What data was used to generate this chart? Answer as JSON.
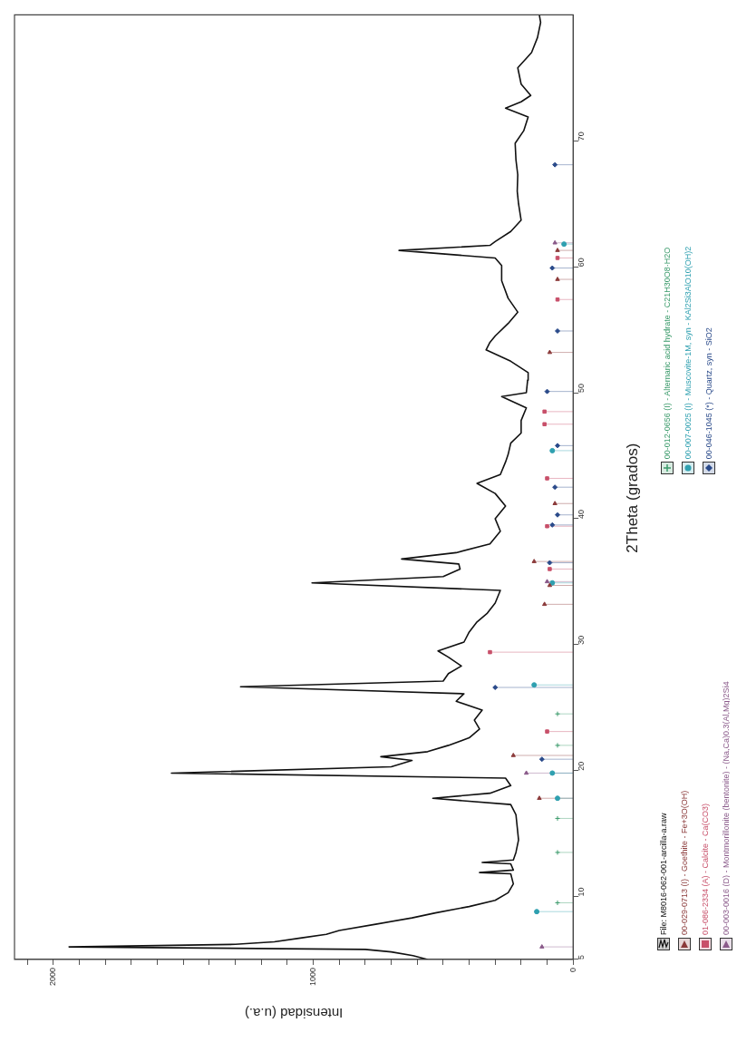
{
  "chart_data": {
    "type": "line",
    "orientation": "horizontal",
    "ylabel": "2Theta (grados)",
    "xlabel": "Intensidad (u.a.)",
    "ylim": [
      5,
      80
    ],
    "yticks": [
      5,
      10,
      20,
      30,
      40,
      50,
      60,
      70
    ],
    "xlim": [
      2150,
      0
    ],
    "xticks": [
      0,
      {
        "value": 100,
        "label": null
      },
      {
        "value": 200,
        "label": null
      },
      {
        "value": 300,
        "label": null
      },
      {
        "value": 400,
        "label": null
      },
      {
        "value": 500,
        "label": null
      },
      {
        "value": 600,
        "label": null
      },
      {
        "value": 700,
        "label": null
      },
      {
        "value": 800,
        "label": null
      },
      {
        "value": 900,
        "label": null
      },
      1000,
      {
        "value": 1100,
        "label": null
      },
      {
        "value": 1200,
        "label": null
      },
      {
        "value": 1300,
        "label": null
      },
      {
        "value": 1400,
        "label": null
      },
      {
        "value": 1500,
        "label": null
      },
      {
        "value": 1600,
        "label": null
      },
      {
        "value": 1700,
        "label": null
      },
      {
        "value": 1800,
        "label": null
      },
      {
        "value": 1900,
        "label": null
      },
      2000,
      {
        "value": 2100,
        "label": null
      }
    ],
    "legend": "right",
    "series": [
      {
        "name": "File: M8016-062-001-arcilla-a.raw",
        "color": "#111111",
        "x": [
          5.0,
          5.3,
          5.6,
          5.8,
          6.0,
          6.2,
          6.4,
          6.7,
          7.0,
          7.3,
          7.8,
          8.3,
          8.7,
          9.2,
          9.7,
          10.3,
          11.0,
          11.8,
          11.9,
          12.1,
          12.6,
          12.7,
          12.9,
          13.5,
          14.5,
          15.5,
          16.5,
          17.3,
          17.8,
          18.2,
          18.8,
          19.4,
          19.8,
          20.3,
          20.8,
          21.1,
          21.5,
          22.0,
          22.6,
          23.3,
          24.0,
          24.8,
          25.5,
          26.1,
          26.65,
          27.1,
          27.7,
          28.3,
          29.0,
          29.5,
          30.2,
          31.0,
          31.8,
          32.5,
          33.3,
          34.3,
          34.9,
          35.4,
          36.0,
          36.4,
          36.8,
          37.3,
          38.0,
          39.0,
          40.0,
          41.0,
          42.0,
          42.8,
          43.5,
          44.5,
          45.1,
          46.0,
          46.8,
          47.8,
          48.8,
          49.7,
          50.0,
          51.0,
          51.6,
          52.5,
          53.4,
          54.0,
          54.5,
          55.5,
          56.4,
          57.5,
          58.9,
          60.1,
          60.7,
          61.3,
          61.7,
          62.0,
          62.8,
          63.7,
          65.0,
          66.0,
          67.3,
          68.5,
          69.8,
          70.8,
          71.9,
          72.6,
          73.1,
          73.6,
          74.5,
          75.8,
          77.0,
          78.2,
          79.4,
          80.0
        ],
        "values": [
          560,
          616,
          700,
          800,
          1940,
          1300,
          1150,
          1050,
          950,
          900,
          760,
          620,
          530,
          400,
          300,
          250,
          230,
          240,
          360,
          230,
          240,
          350,
          230,
          220,
          210,
          215,
          220,
          240,
          540,
          320,
          240,
          260,
          1546,
          700,
          620,
          740,
          560,
          480,
          400,
          360,
          380,
          350,
          450,
          420,
          1280,
          500,
          480,
          430,
          480,
          520,
          420,
          400,
          370,
          330,
          300,
          280,
          1005,
          500,
          435,
          440,
          660,
          450,
          320,
          280,
          300,
          260,
          300,
          370,
          280,
          260,
          250,
          240,
          200,
          200,
          180,
          275,
          180,
          175,
          173,
          240,
          335,
          320,
          300,
          250,
          213,
          250,
          275,
          275,
          300,
          670,
          320,
          300,
          240,
          200,
          210,
          215,
          213,
          220,
          223,
          190,
          173,
          260,
          200,
          163,
          200,
          213,
          160,
          137,
          125,
          130
        ]
      },
      {
        "name": "00-029-0713 (I) - Goethite - Fe+3O(OH)",
        "type": "lollipop",
        "color": "#8b3a3a",
        "marker": "triangle",
        "x": [
          17.8,
          21.2,
          33.2,
          34.7,
          36.6,
          41.2,
          53.2,
          59.0,
          61.3
        ],
        "values": [
          130,
          230,
          110,
          90,
          150,
          70,
          90,
          60,
          60
        ]
      },
      {
        "name": "01-086-2334 (A) - Calcite - Ca(CO3)",
        "type": "lollipop",
        "color": "#c8506a",
        "marker": "square",
        "x": [
          23.1,
          29.4,
          36.0,
          39.4,
          43.2,
          47.5,
          48.5,
          57.4,
          60.7
        ],
        "values": [
          100,
          320,
          90,
          100,
          100,
          110,
          110,
          60,
          60
        ]
      },
      {
        "name": "00-003-0016 (D) - Montmorillonite (bentonite) - (Na,Ca)0.3(Al,Mg)2Si4",
        "type": "lollipop",
        "color": "#8a5a8a",
        "marker": "triangle",
        "x": [
          6.0,
          19.8,
          35.0,
          61.9
        ],
        "values": [
          120,
          180,
          100,
          70
        ]
      },
      {
        "name": "00-012-0656 (I) - Alternaric acid hydrate - C21H30O8·H2O",
        "type": "lollipop",
        "color": "#3a9a6a",
        "marker": "cross",
        "x": [
          9.5,
          13.5,
          16.2,
          22.0,
          24.5
        ],
        "values": [
          60,
          60,
          60,
          60,
          60
        ]
      },
      {
        "name": "00-007-0025 (I) - Muscovite-1M, syn - KAl2Si3AlO10(OH)2",
        "type": "lollipop",
        "color": "#2fa0b0",
        "marker": "circle",
        "x": [
          8.8,
          17.8,
          19.8,
          26.8,
          34.9,
          45.4,
          61.8
        ],
        "values": [
          140,
          60,
          80,
          150,
          80,
          80,
          35
        ]
      },
      {
        "name": "00-046-1045 (*) - Quartz, syn - SiO2",
        "type": "lollipop",
        "color": "#2a4a8a",
        "marker": "diamond",
        "x": [
          20.9,
          26.6,
          36.5,
          39.5,
          40.3,
          42.5,
          45.8,
          50.1,
          54.9,
          59.9,
          68.1
        ],
        "values": [
          120,
          300,
          90,
          80,
          60,
          70,
          60,
          100,
          60,
          80,
          70
        ]
      }
    ]
  }
}
